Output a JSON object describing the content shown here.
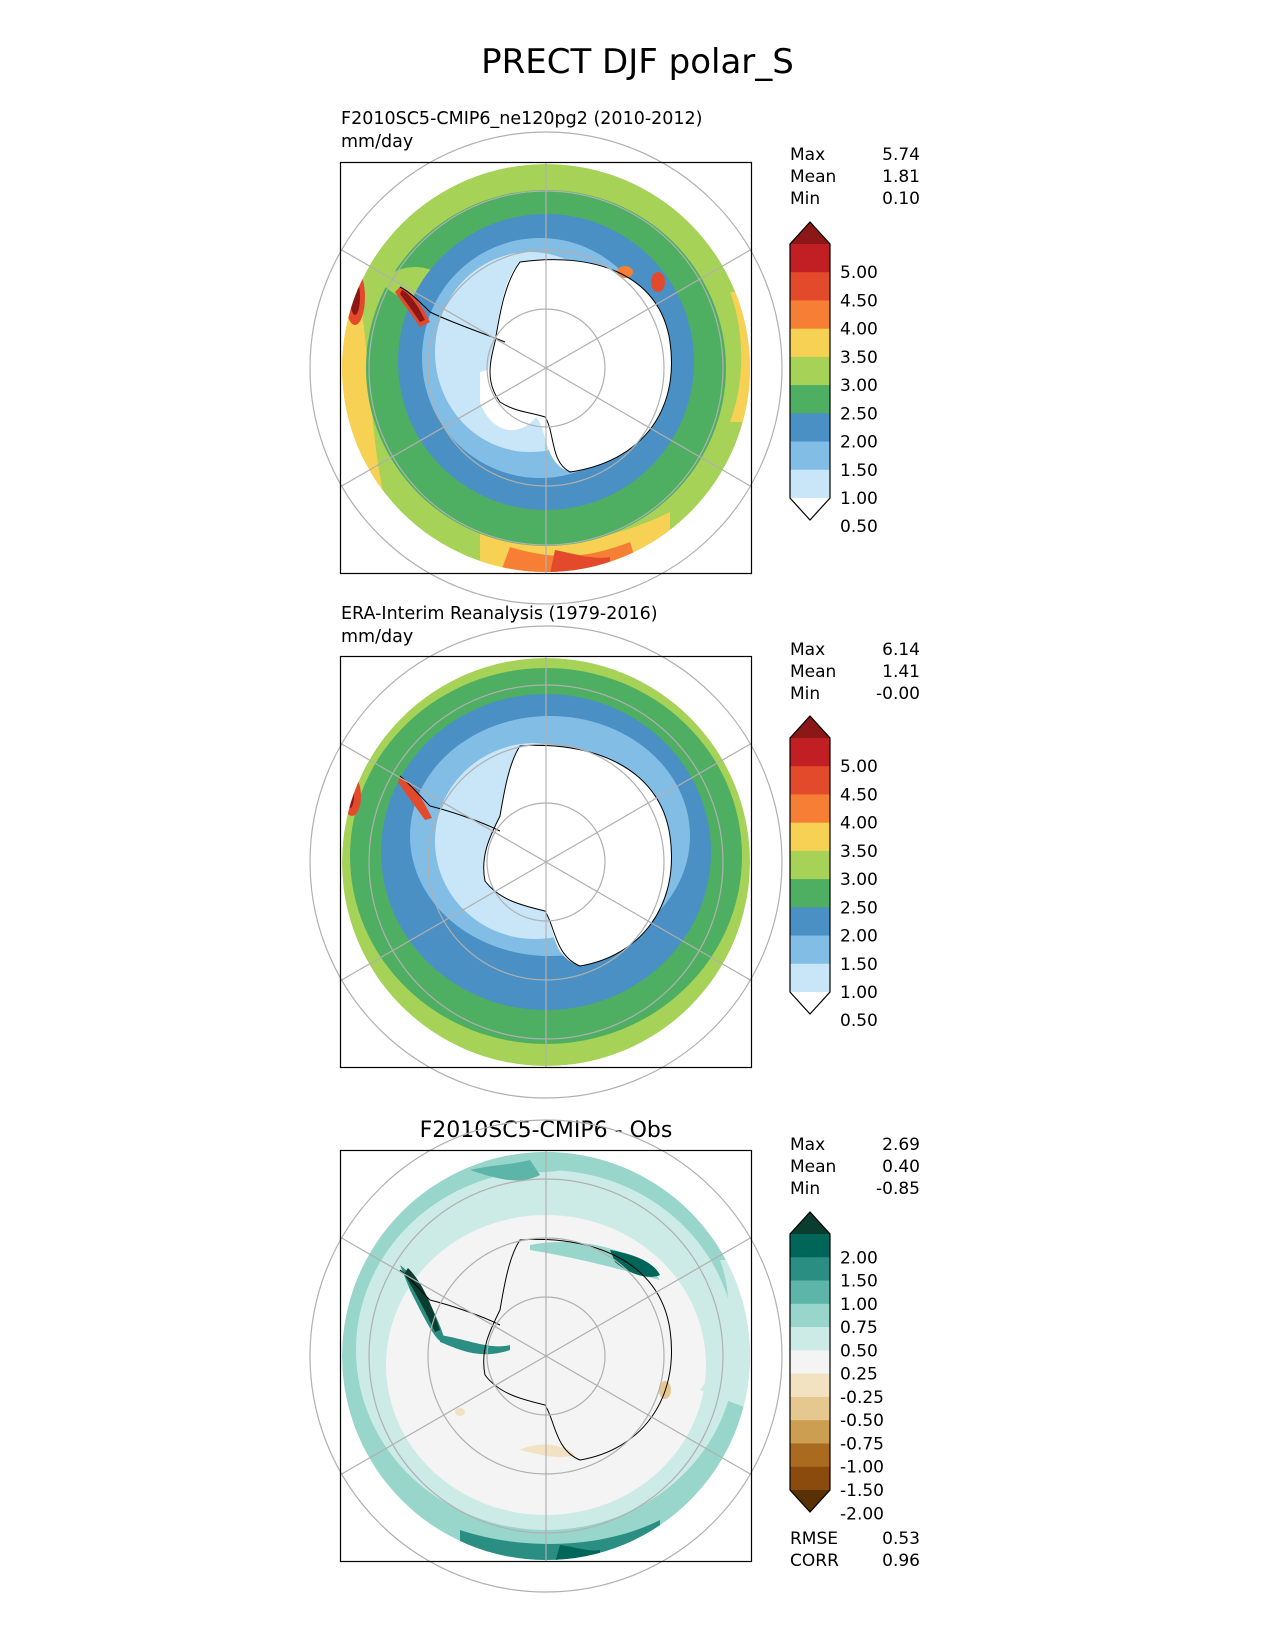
{
  "title": "PRECT DJF polar_S",
  "panels": [
    {
      "id": "test",
      "title_line1": "F2010SC5-CMIP6_ne120pg2 (2010-2012)",
      "title_line2": "mm/day",
      "stats": [
        {
          "label": "Max",
          "value": "5.74"
        },
        {
          "label": "Mean",
          "value": "1.81"
        },
        {
          "label": "Min",
          "value": "0.10"
        }
      ],
      "colorbar": {
        "levels": [
          "5.00",
          "4.50",
          "4.00",
          "3.50",
          "3.00",
          "2.50",
          "2.00",
          "1.50",
          "1.00",
          "0.50"
        ],
        "colors": [
          "#8c1717",
          "#c21f24",
          "#e34a2c",
          "#f67f35",
          "#f7d153",
          "#a6d257",
          "#4eaf62",
          "#4a90c4",
          "#82bde6",
          "#c8e6f8",
          "#ffffff"
        ]
      }
    },
    {
      "id": "reference",
      "title_line1": "ERA-Interim Reanalysis (1979-2016)",
      "title_line2": "mm/day",
      "stats": [
        {
          "label": "Max",
          "value": "6.14"
        },
        {
          "label": "Mean",
          "value": "1.41"
        },
        {
          "label": "Min",
          "value": "-0.00"
        }
      ],
      "colorbar": {
        "levels": [
          "5.00",
          "4.50",
          "4.00",
          "3.50",
          "3.00",
          "2.50",
          "2.00",
          "1.50",
          "1.00",
          "0.50"
        ],
        "colors": [
          "#8c1717",
          "#c21f24",
          "#e34a2c",
          "#f67f35",
          "#f7d153",
          "#a6d257",
          "#4eaf62",
          "#4a90c4",
          "#82bde6",
          "#c8e6f8",
          "#ffffff"
        ]
      }
    },
    {
      "id": "difference",
      "title": "F2010SC5-CMIP6 - Obs",
      "stats": [
        {
          "label": "Max",
          "value": "2.69"
        },
        {
          "label": "Mean",
          "value": "0.40"
        },
        {
          "label": "Min",
          "value": "-0.85"
        }
      ],
      "colorbar": {
        "levels": [
          "2.00",
          "1.50",
          "1.00",
          "0.75",
          "0.50",
          "0.25",
          "-0.25",
          "-0.50",
          "-0.75",
          "-1.00",
          "-1.50",
          "-2.00"
        ],
        "colors": [
          "#0a3d30",
          "#00665a",
          "#2a8f82",
          "#5cb5a8",
          "#98d6cb",
          "#cdebe6",
          "#f4f4f4",
          "#f3e2c1",
          "#e4c88f",
          "#cc9e52",
          "#aa6b21",
          "#8a4b0c",
          "#5a3005"
        ]
      },
      "metrics": [
        {
          "label": "RMSE",
          "value": "0.53"
        },
        {
          "label": "CORR",
          "value": "0.96"
        }
      ]
    }
  ]
}
